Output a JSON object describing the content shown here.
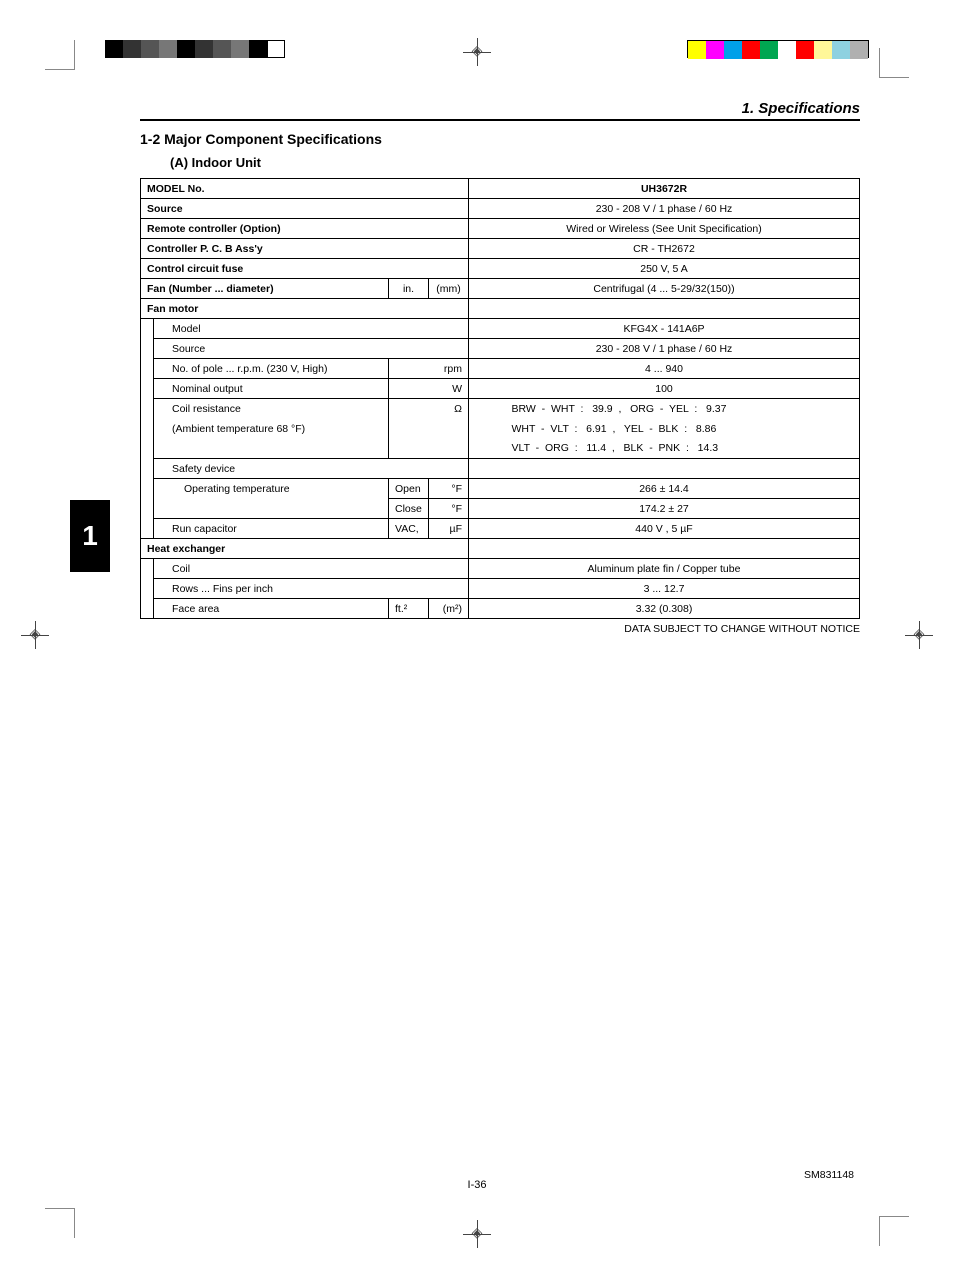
{
  "crop_bars": {
    "left_colors": [
      "#000000",
      "#333333",
      "#555555",
      "#777777",
      "#000000",
      "#333333",
      "#555555",
      "#777777",
      "#000000",
      "#ffffff"
    ],
    "left_border": true,
    "right_colors": [
      "#ffff00",
      "#ff00ff",
      "#00a0e9",
      "#ff0000",
      "#00a651",
      "#ffffff",
      "#ff0000",
      "#fff799",
      "#8ed1e0",
      "#b0b0b0"
    ]
  },
  "header": {
    "section": "1. Specifications",
    "sub": "1-2  Major Component Specifications",
    "part": "(A)  Indoor Unit"
  },
  "side_tab": "1",
  "footer": {
    "note": "DATA SUBJECT TO CHANGE WITHOUT NOTICE",
    "page": "I-36",
    "doc": "SM831148"
  },
  "table": {
    "model_label": "MODEL No.",
    "model_value": "UH3672R",
    "rows": [
      {
        "label": "Source",
        "value": "230 - 208 V / 1 phase / 60 Hz",
        "bold": true
      },
      {
        "label": "Remote  controller (Option)",
        "value": "Wired or Wireless (See Unit Specification)",
        "bold": true
      },
      {
        "label": "Controller P. C. B Ass'y",
        "value": "CR - TH2672",
        "bold": true
      },
      {
        "label": "Control circuit fuse",
        "value": "250 V, 5 A",
        "bold": true
      }
    ],
    "fan_label": "Fan (Number ... diameter)",
    "fan_u1": "in.",
    "fan_u2": "(mm)",
    "fan_value": "Centrifugal (4 ... 5-29/32(150))",
    "fanmotor_label": "Fan motor",
    "fm_model_l": "Model",
    "fm_model_v": "KFG4X - 141A6P",
    "fm_source_l": "Source",
    "fm_source_v": "230 - 208 V / 1 phase / 60 Hz",
    "fm_pole_l": "No. of pole ... r.p.m. (230 V, High)",
    "fm_pole_u": "rpm",
    "fm_pole_v": "4 ... 940",
    "fm_nom_l": "Nominal output",
    "fm_nom_u": "W",
    "fm_nom_v": "100",
    "fm_coil_l": "Coil resistance",
    "fm_coil_u": "Ω",
    "fm_amb_l": "(Ambient temperature 68 °F)",
    "resist": {
      "r1a": "BRW  -  WHT",
      "r1av": "39.9",
      "r1b": "ORG  -  YEL",
      "r1bv": "9.37",
      "r2a": "WHT  -  VLT",
      "r2av": "6.91",
      "r2b": "YEL  -  BLK",
      "r2bv": "8.86",
      "r3a": "VLT  -  ORG",
      "r3av": "11.4",
      "r3b": "BLK  -  PNK",
      "r3bv": "14.3"
    },
    "safety_l": "Safety device",
    "op_l": "Operating temperature",
    "op_open": "Open",
    "op_open_u": "°F",
    "op_open_v": "266    ±  14.4",
    "op_close": "Close",
    "op_close_u": "°F",
    "op_close_v": "174.2  ±  27",
    "run_l": "Run capacitor",
    "run_u1": "VAC,",
    "run_u2": "µF",
    "run_v": "440 V , 5 µF",
    "he_l": "Heat exchanger",
    "coil_l": "Coil",
    "coil_v": "Aluminum plate fin / Copper tube",
    "rows_l": "Rows ... Fins per inch",
    "rows_v": "3 ... 12.7",
    "face_l": "Face area",
    "face_u1": "ft.²",
    "face_u2": "(m²)",
    "face_v": "3.32 (0.308)"
  }
}
